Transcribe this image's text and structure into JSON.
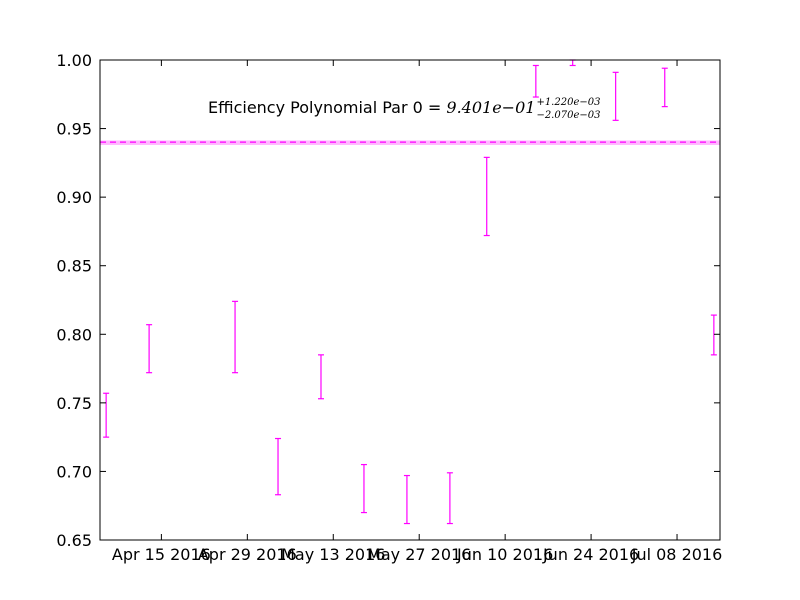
{
  "chart_data": {
    "type": "scatter",
    "title": "",
    "xlabel": "",
    "ylabel": "",
    "ylim": [
      0.65,
      1.0
    ],
    "xlim": [
      "2016-04-05",
      "2016-07-15"
    ],
    "grid": false,
    "legend": "none",
    "colors": {
      "series": "#ff00ff",
      "band": "#ff00ff"
    },
    "x_ticks": [
      {
        "date": "2016-04-15",
        "label": "Apr 15 2016"
      },
      {
        "date": "2016-04-29",
        "label": "Apr 29 2016"
      },
      {
        "date": "2016-05-13",
        "label": "May 13 2016"
      },
      {
        "date": "2016-05-27",
        "label": "May 27 2016"
      },
      {
        "date": "2016-06-10",
        "label": "Jun 10 2016"
      },
      {
        "date": "2016-06-24",
        "label": "Jun 24 2016"
      },
      {
        "date": "2016-07-08",
        "label": "Jul 08 2016"
      }
    ],
    "y_ticks": [
      "0.65",
      "0.70",
      "0.75",
      "0.80",
      "0.85",
      "0.90",
      "0.95",
      "1.00"
    ],
    "series": [
      {
        "points": [
          {
            "x": "2016-04-06",
            "low": 0.725,
            "high": 0.757
          },
          {
            "x": "2016-04-13",
            "low": 0.772,
            "high": 0.807
          },
          {
            "x": "2016-04-27",
            "low": 0.772,
            "high": 0.824
          },
          {
            "x": "2016-05-04",
            "low": 0.683,
            "high": 0.724
          },
          {
            "x": "2016-05-11",
            "low": 0.753,
            "high": 0.785
          },
          {
            "x": "2016-05-18",
            "low": 0.67,
            "high": 0.705
          },
          {
            "x": "2016-05-25",
            "low": 0.662,
            "high": 0.697
          },
          {
            "x": "2016-06-01",
            "low": 0.662,
            "high": 0.699
          },
          {
            "x": "2016-06-07",
            "low": 0.872,
            "high": 0.929
          },
          {
            "x": "2016-06-15",
            "low": 0.973,
            "high": 0.996
          },
          {
            "x": "2016-06-21",
            "low": 0.996,
            "high": 1.0
          },
          {
            "x": "2016-06-28",
            "low": 0.956,
            "high": 0.991
          },
          {
            "x": "2016-07-06",
            "low": 0.966,
            "high": 0.994
          },
          {
            "x": "2016-07-14",
            "low": 0.785,
            "high": 0.814
          }
        ]
      }
    ],
    "reference_line": {
      "value": 0.9401,
      "band_low": 0.93803,
      "band_high": 0.94132
    },
    "annotation": {
      "text": "Efficiency Polynomial Par 0 = ",
      "math_main": "9.401e−01",
      "math_sup": "+1.220e−03",
      "math_sub": "−2.070e−03"
    }
  }
}
